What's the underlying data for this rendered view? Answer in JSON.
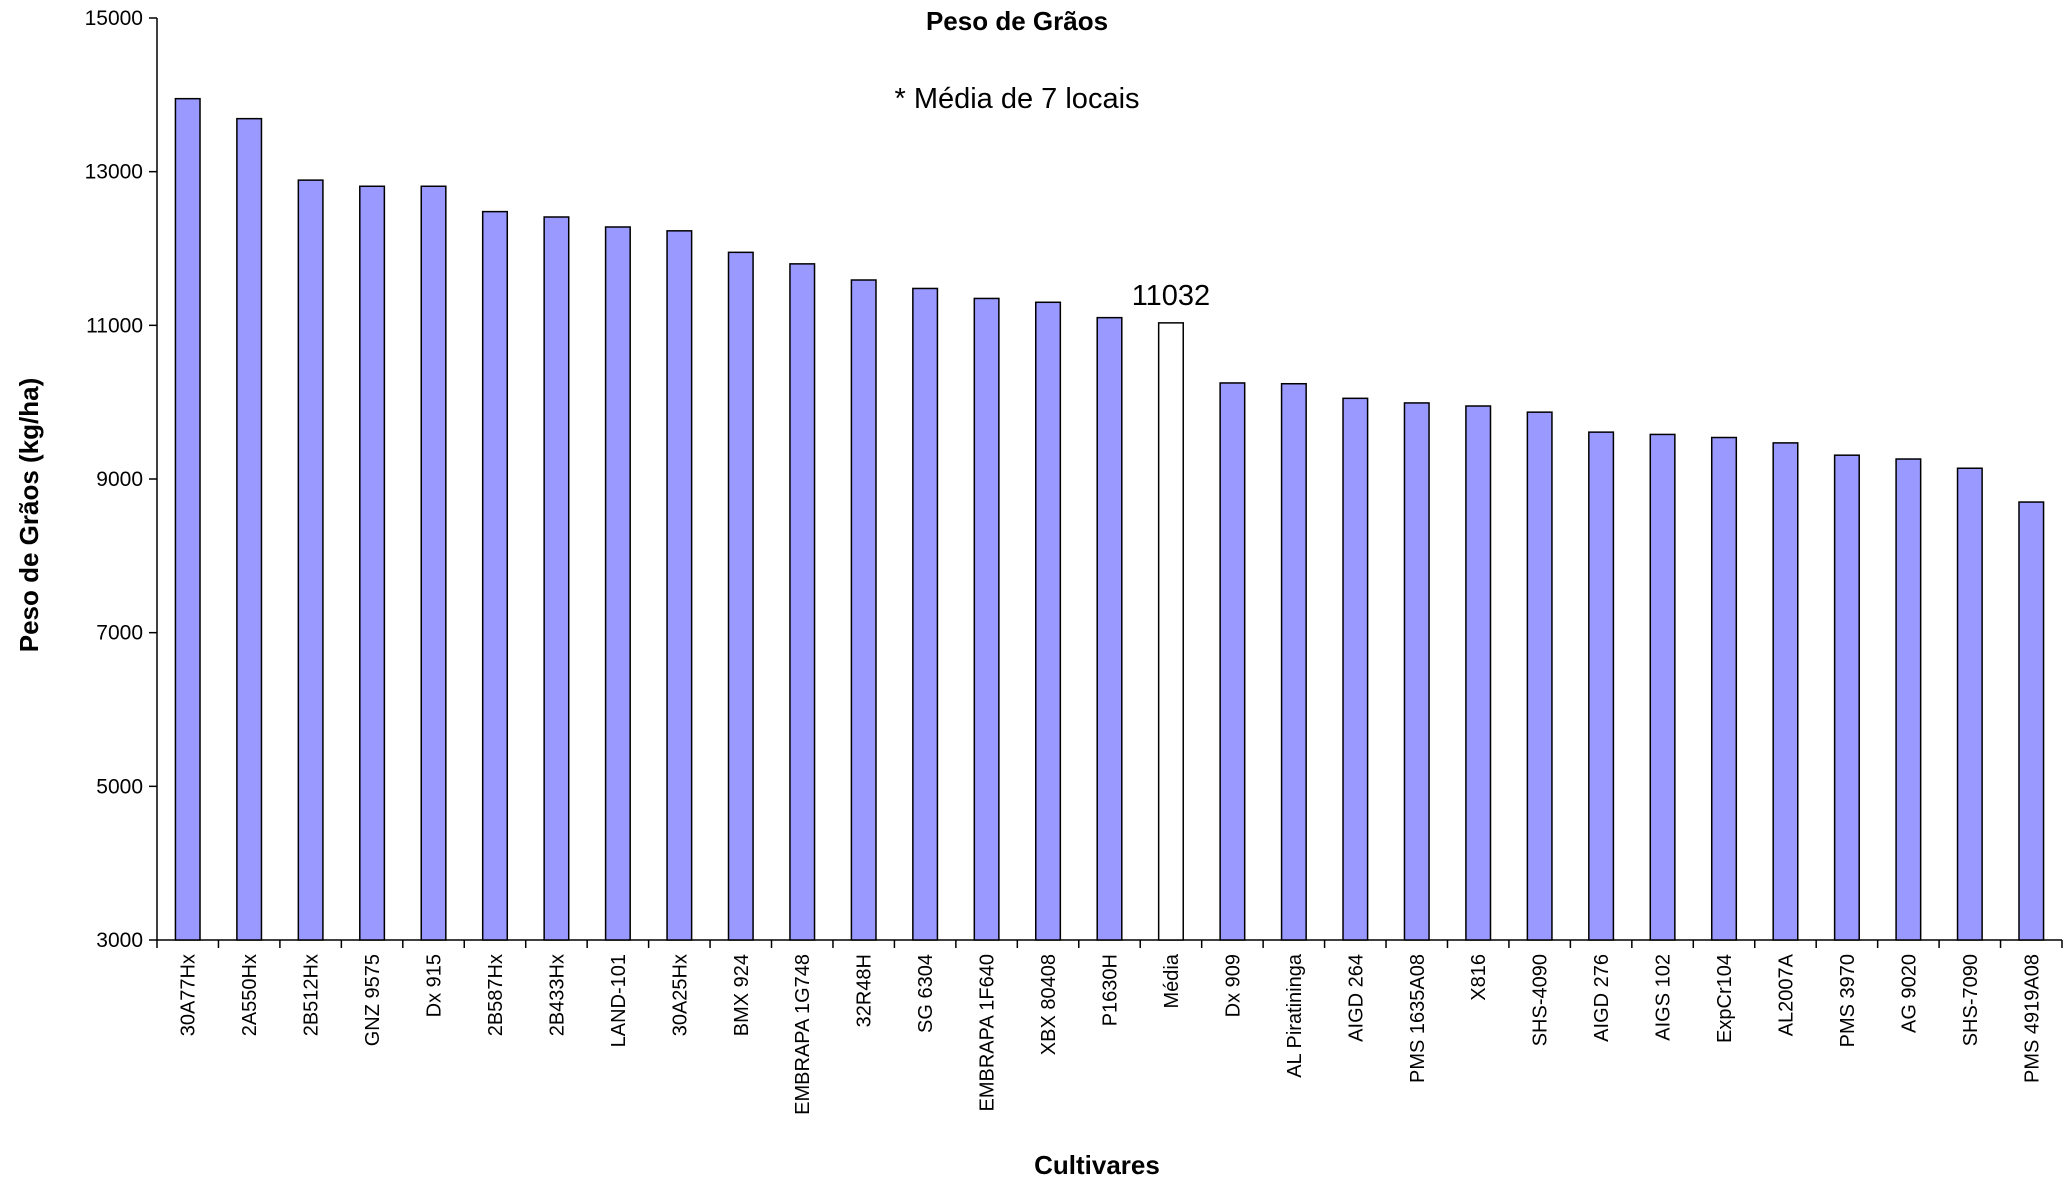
{
  "chart_data": {
    "type": "bar",
    "title": "Peso de Grãos",
    "subtitle": "* Média de 7 locais",
    "xlabel": "Cultivares",
    "ylabel": "Peso de Grãos (kg/ha)",
    "ylim": [
      3000,
      15000
    ],
    "yticks": [
      3000,
      5000,
      7000,
      9000,
      11000,
      13000,
      15000
    ],
    "grid": false,
    "legend": "none",
    "categories": [
      "30A77Hx",
      "2A550Hx",
      "2B512Hx",
      "GNZ 9575",
      "Dx 915",
      "2B587Hx",
      "2B433Hx",
      "LAND-101",
      "30A25Hx",
      "BMX 924",
      "EMBRAPA 1G748",
      "32R48H",
      "SG 6304",
      "EMBRAPA 1F640",
      "XBX 80408",
      "P1630H",
      "Média",
      "Dx 909",
      "AL Piratininga",
      "AIGD 264",
      "PMS 1635A08",
      "X816",
      "SHS-4090",
      "AIGD 276",
      "AIGS 102",
      "ExpCr104",
      "AL2007A",
      "PMS 3970",
      "AG 9020",
      "SHS-7090",
      "PMS 4919A08"
    ],
    "values": [
      13950,
      13690,
      12890,
      12810,
      12810,
      12480,
      12410,
      12280,
      12230,
      11950,
      11800,
      11590,
      11480,
      11350,
      11300,
      11100,
      11032,
      10250,
      10240,
      10050,
      9990,
      9950,
      9870,
      9610,
      9580,
      9540,
      9470,
      9310,
      9260,
      9140,
      8700
    ],
    "highlight_category": "Média",
    "data_labels": [
      {
        "category": "Média",
        "text": "11032"
      }
    ],
    "colors": {
      "bar": "#9999ff",
      "highlight": "#ffffff",
      "outline": "#000000"
    }
  }
}
